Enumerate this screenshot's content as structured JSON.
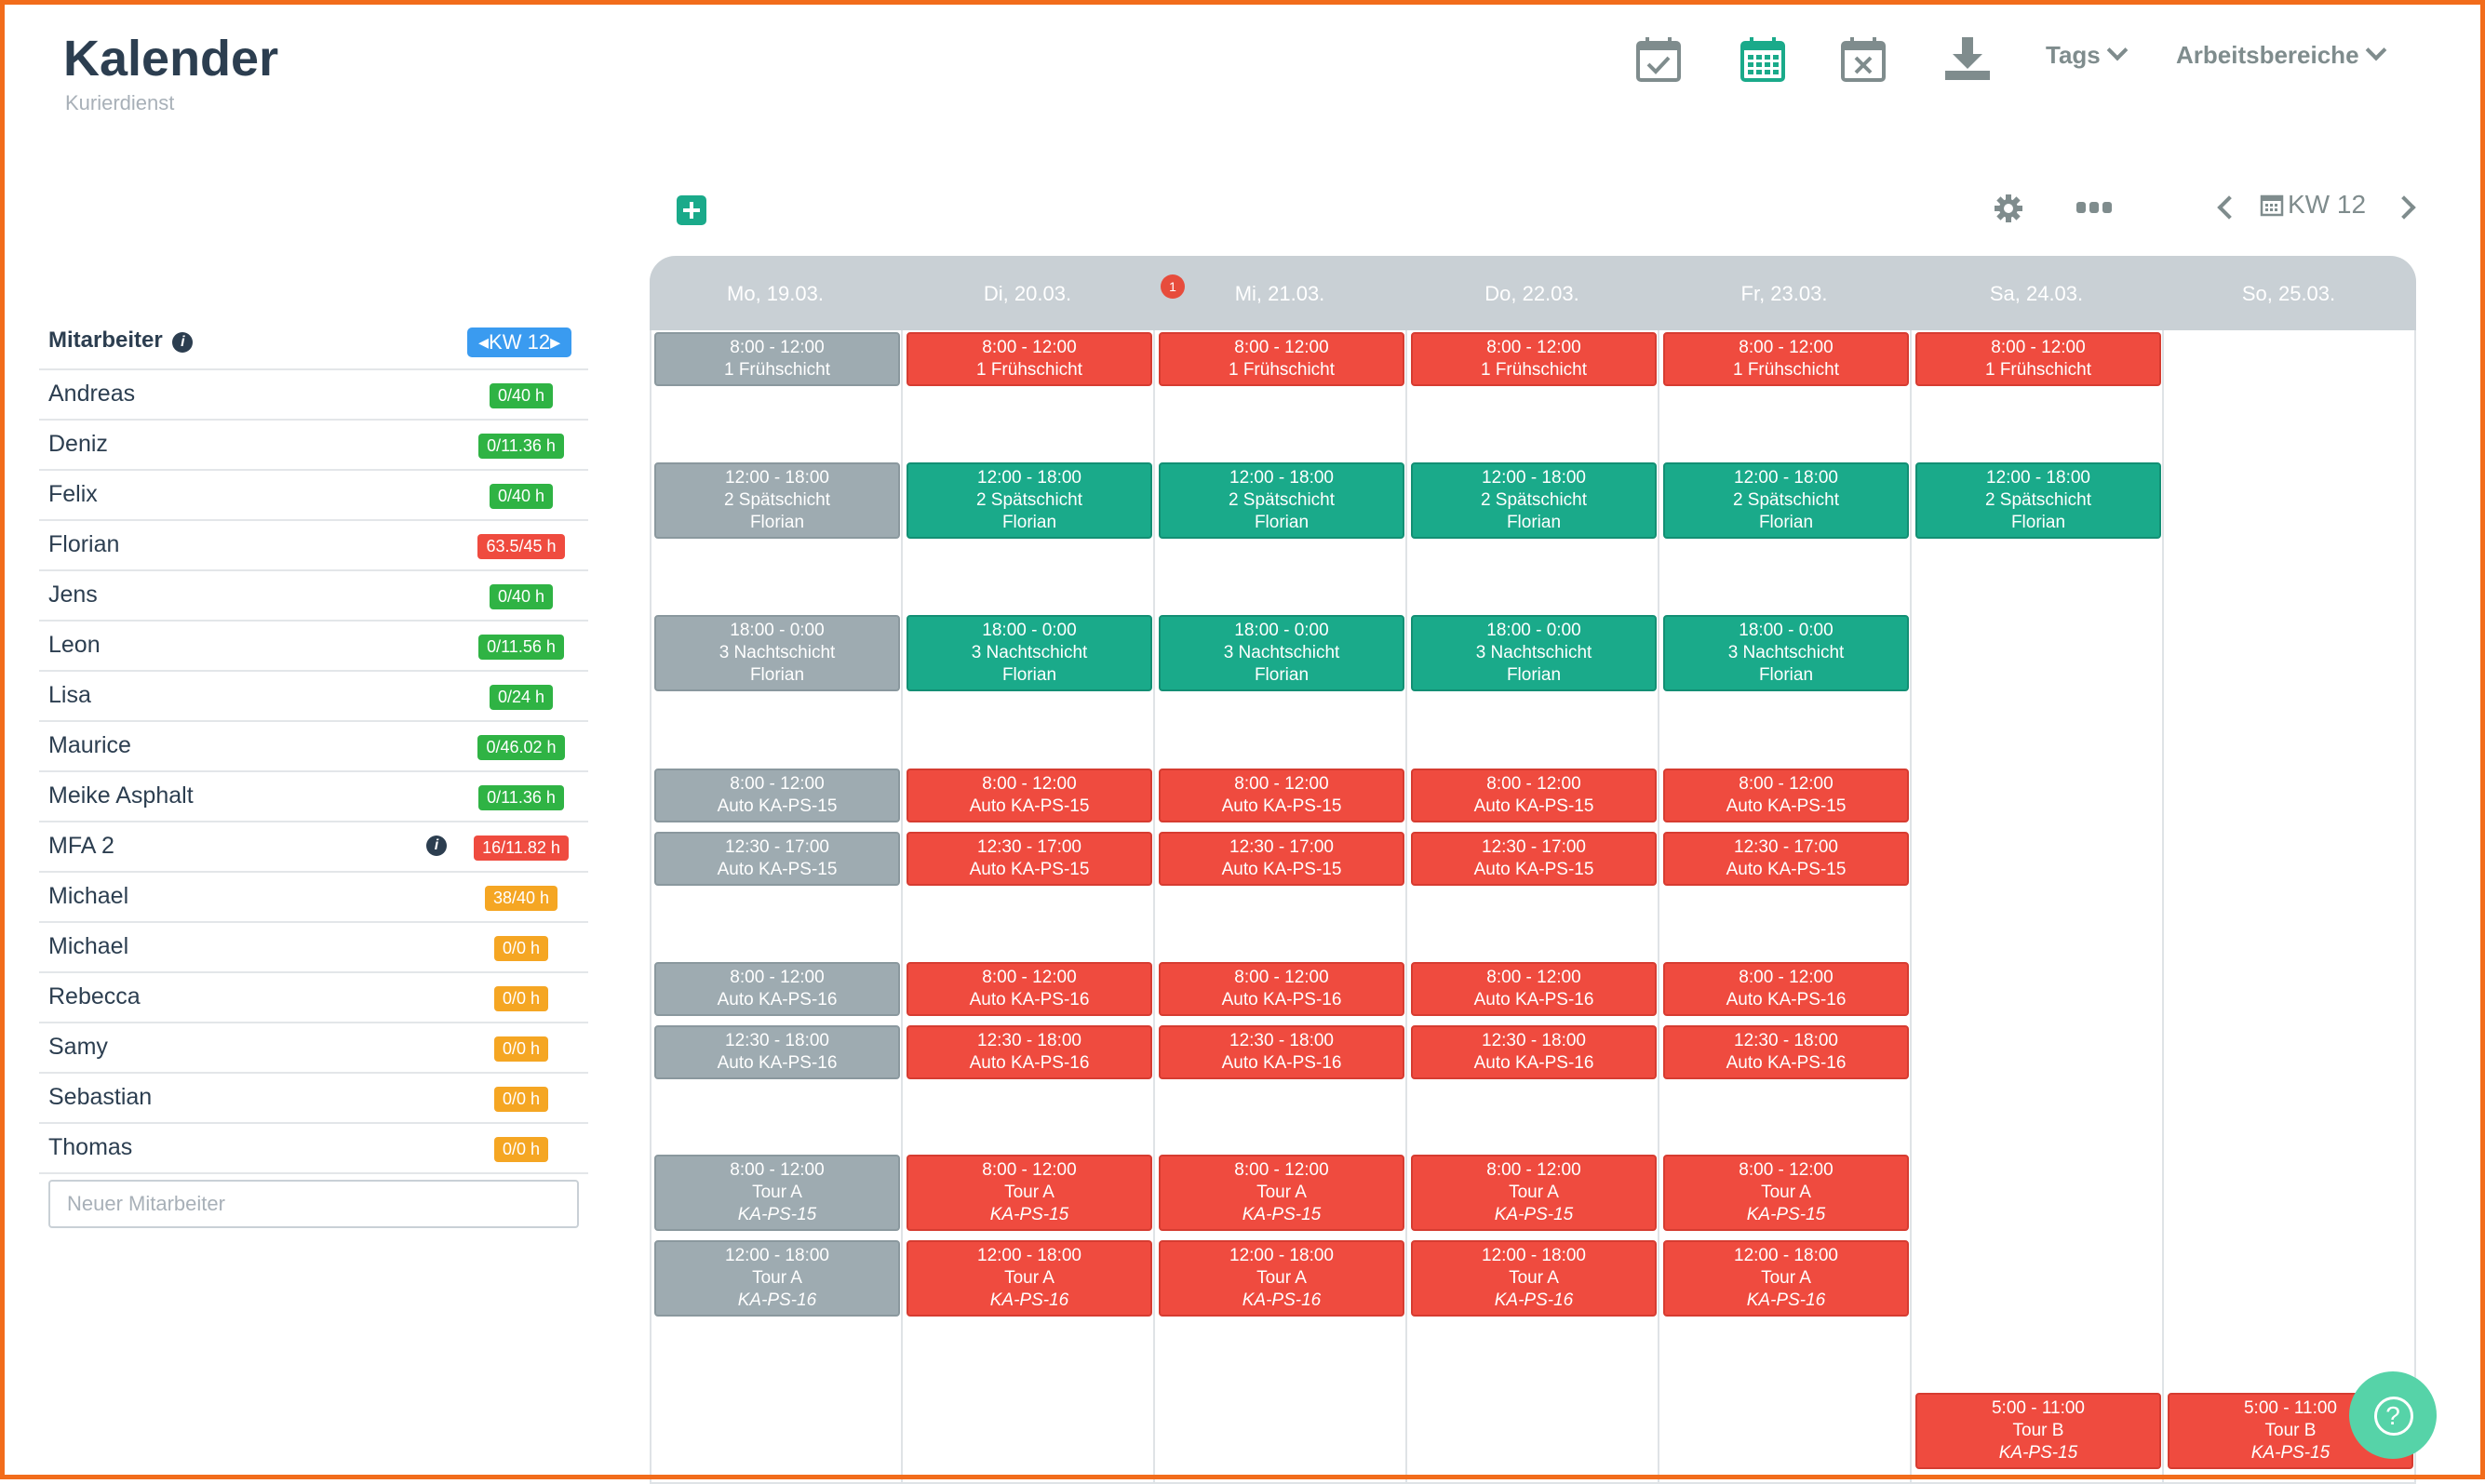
{
  "app": {
    "title": "Kalender",
    "subtitle": "Kurierdienst"
  },
  "toolbar": {
    "icons": [
      "calendar-check-icon",
      "calendar-grid-icon",
      "calendar-x-icon",
      "download-icon"
    ],
    "tags_label": "Tags",
    "workspaces_label": "Arbeitsbereiche"
  },
  "week_nav": {
    "label": "KW 12"
  },
  "employees": {
    "header": "Mitarbeiter",
    "week_badge": "KW 12",
    "new_placeholder": "Neuer Mitarbeiter",
    "items": [
      {
        "name": "Andreas",
        "hours": "0/40 h",
        "status": "green"
      },
      {
        "name": "Deniz",
        "hours": "0/11.36 h",
        "status": "green"
      },
      {
        "name": "Felix",
        "hours": "0/40 h",
        "status": "green"
      },
      {
        "name": "Florian",
        "hours": "63.5/45 h",
        "status": "red"
      },
      {
        "name": "Jens",
        "hours": "0/40 h",
        "status": "green"
      },
      {
        "name": "Leon",
        "hours": "0/11.56 h",
        "status": "green"
      },
      {
        "name": "Lisa",
        "hours": "0/24 h",
        "status": "green"
      },
      {
        "name": "Maurice",
        "hours": "0/46.02 h",
        "status": "green"
      },
      {
        "name": "Meike Asphalt",
        "hours": "0/11.36 h",
        "status": "green"
      },
      {
        "name": "MFA 2",
        "hours": "16/11.82 h",
        "status": "red",
        "info": "i"
      },
      {
        "name": "Michael",
        "hours": "38/40 h",
        "status": "orange"
      },
      {
        "name": "Michael",
        "hours": "0/0 h",
        "status": "orange"
      },
      {
        "name": "Rebecca",
        "hours": "0/0 h",
        "status": "orange"
      },
      {
        "name": "Samy",
        "hours": "0/0 h",
        "status": "orange"
      },
      {
        "name": "Sebastian",
        "hours": "0/0 h",
        "status": "orange"
      },
      {
        "name": "Thomas",
        "hours": "0/0 h",
        "status": "orange"
      }
    ]
  },
  "calendar": {
    "days": [
      {
        "label": "Mo, 19.03."
      },
      {
        "label": "Di, 20.03."
      },
      {
        "label": "Mi, 21.03.",
        "badge": "1"
      },
      {
        "label": "Do, 22.03."
      },
      {
        "label": "Fr, 23.03."
      },
      {
        "label": "Sa, 24.03."
      },
      {
        "label": "So, 25.03."
      }
    ],
    "shifts": [
      {
        "day": 0,
        "row": 0,
        "color": "gray",
        "time": "8:00 - 12:00",
        "title": "1 Frühschicht"
      },
      {
        "day": 1,
        "row": 0,
        "color": "red",
        "time": "8:00 - 12:00",
        "title": "1 Frühschicht"
      },
      {
        "day": 2,
        "row": 0,
        "color": "red",
        "time": "8:00 - 12:00",
        "title": "1 Frühschicht"
      },
      {
        "day": 3,
        "row": 0,
        "color": "red",
        "time": "8:00 - 12:00",
        "title": "1 Frühschicht"
      },
      {
        "day": 4,
        "row": 0,
        "color": "red",
        "time": "8:00 - 12:00",
        "title": "1 Frühschicht"
      },
      {
        "day": 5,
        "row": 0,
        "color": "red",
        "time": "8:00 - 12:00",
        "title": "1 Frühschicht"
      },
      {
        "day": 0,
        "row": 1,
        "color": "gray",
        "time": "12:00 - 18:00",
        "title": "2 Spätschicht",
        "sub": "Florian"
      },
      {
        "day": 1,
        "row": 1,
        "color": "green",
        "time": "12:00 - 18:00",
        "title": "2 Spätschicht",
        "sub": "Florian"
      },
      {
        "day": 2,
        "row": 1,
        "color": "green",
        "time": "12:00 - 18:00",
        "title": "2 Spätschicht",
        "sub": "Florian"
      },
      {
        "day": 3,
        "row": 1,
        "color": "green",
        "time": "12:00 - 18:00",
        "title": "2 Spätschicht",
        "sub": "Florian"
      },
      {
        "day": 4,
        "row": 1,
        "color": "green",
        "time": "12:00 - 18:00",
        "title": "2 Spätschicht",
        "sub": "Florian"
      },
      {
        "day": 5,
        "row": 1,
        "color": "green",
        "time": "12:00 - 18:00",
        "title": "2 Spätschicht",
        "sub": "Florian"
      },
      {
        "day": 0,
        "row": 2,
        "color": "gray",
        "time": "18:00 - 0:00",
        "title": "3 Nachtschicht",
        "sub": "Florian"
      },
      {
        "day": 1,
        "row": 2,
        "color": "green",
        "time": "18:00 - 0:00",
        "title": "3 Nachtschicht",
        "sub": "Florian"
      },
      {
        "day": 2,
        "row": 2,
        "color": "green",
        "time": "18:00 - 0:00",
        "title": "3 Nachtschicht",
        "sub": "Florian"
      },
      {
        "day": 3,
        "row": 2,
        "color": "green",
        "time": "18:00 - 0:00",
        "title": "3 Nachtschicht",
        "sub": "Florian"
      },
      {
        "day": 4,
        "row": 2,
        "color": "green",
        "time": "18:00 - 0:00",
        "title": "3 Nachtschicht",
        "sub": "Florian"
      },
      {
        "day": 0,
        "row": 3,
        "color": "gray",
        "time": "8:00 - 12:00",
        "title": "Auto KA-PS-15"
      },
      {
        "day": 1,
        "row": 3,
        "color": "red",
        "time": "8:00 - 12:00",
        "title": "Auto KA-PS-15"
      },
      {
        "day": 2,
        "row": 3,
        "color": "red",
        "time": "8:00 - 12:00",
        "title": "Auto KA-PS-15"
      },
      {
        "day": 3,
        "row": 3,
        "color": "red",
        "time": "8:00 - 12:00",
        "title": "Auto KA-PS-15"
      },
      {
        "day": 4,
        "row": 3,
        "color": "red",
        "time": "8:00 - 12:00",
        "title": "Auto KA-PS-15"
      },
      {
        "day": 0,
        "row": 4,
        "color": "gray",
        "time": "12:30 - 17:00",
        "title": "Auto KA-PS-15"
      },
      {
        "day": 1,
        "row": 4,
        "color": "red",
        "time": "12:30 - 17:00",
        "title": "Auto KA-PS-15"
      },
      {
        "day": 2,
        "row": 4,
        "color": "red",
        "time": "12:30 - 17:00",
        "title": "Auto KA-PS-15"
      },
      {
        "day": 3,
        "row": 4,
        "color": "red",
        "time": "12:30 - 17:00",
        "title": "Auto KA-PS-15"
      },
      {
        "day": 4,
        "row": 4,
        "color": "red",
        "time": "12:30 - 17:00",
        "title": "Auto KA-PS-15"
      },
      {
        "day": 0,
        "row": 5,
        "color": "gray",
        "time": "8:00 - 12:00",
        "title": "Auto KA-PS-16"
      },
      {
        "day": 1,
        "row": 5,
        "color": "red",
        "time": "8:00 - 12:00",
        "title": "Auto KA-PS-16"
      },
      {
        "day": 2,
        "row": 5,
        "color": "red",
        "time": "8:00 - 12:00",
        "title": "Auto KA-PS-16"
      },
      {
        "day": 3,
        "row": 5,
        "color": "red",
        "time": "8:00 - 12:00",
        "title": "Auto KA-PS-16"
      },
      {
        "day": 4,
        "row": 5,
        "color": "red",
        "time": "8:00 - 12:00",
        "title": "Auto KA-PS-16"
      },
      {
        "day": 0,
        "row": 6,
        "color": "gray",
        "time": "12:30 - 18:00",
        "title": "Auto KA-PS-16"
      },
      {
        "day": 1,
        "row": 6,
        "color": "red",
        "time": "12:30 - 18:00",
        "title": "Auto KA-PS-16"
      },
      {
        "day": 2,
        "row": 6,
        "color": "red",
        "time": "12:30 - 18:00",
        "title": "Auto KA-PS-16"
      },
      {
        "day": 3,
        "row": 6,
        "color": "red",
        "time": "12:30 - 18:00",
        "title": "Auto KA-PS-16"
      },
      {
        "day": 4,
        "row": 6,
        "color": "red",
        "time": "12:30 - 18:00",
        "title": "Auto KA-PS-16"
      },
      {
        "day": 0,
        "row": 7,
        "color": "gray",
        "time": "8:00 - 12:00",
        "title": "Tour A",
        "sub": "KA-PS-15",
        "italic": true
      },
      {
        "day": 1,
        "row": 7,
        "color": "red",
        "time": "8:00 - 12:00",
        "title": "Tour A",
        "sub": "KA-PS-15",
        "italic": true
      },
      {
        "day": 2,
        "row": 7,
        "color": "red",
        "time": "8:00 - 12:00",
        "title": "Tour A",
        "sub": "KA-PS-15",
        "italic": true
      },
      {
        "day": 3,
        "row": 7,
        "color": "red",
        "time": "8:00 - 12:00",
        "title": "Tour A",
        "sub": "KA-PS-15",
        "italic": true
      },
      {
        "day": 4,
        "row": 7,
        "color": "red",
        "time": "8:00 - 12:00",
        "title": "Tour A",
        "sub": "KA-PS-15",
        "italic": true
      },
      {
        "day": 0,
        "row": 8,
        "color": "gray",
        "time": "12:00 - 18:00",
        "title": "Tour A",
        "sub": "KA-PS-16",
        "italic": true
      },
      {
        "day": 1,
        "row": 8,
        "color": "red",
        "time": "12:00 - 18:00",
        "title": "Tour A",
        "sub": "KA-PS-16",
        "italic": true
      },
      {
        "day": 2,
        "row": 8,
        "color": "red",
        "time": "12:00 - 18:00",
        "title": "Tour A",
        "sub": "KA-PS-16",
        "italic": true
      },
      {
        "day": 3,
        "row": 8,
        "color": "red",
        "time": "12:00 - 18:00",
        "title": "Tour A",
        "sub": "KA-PS-16",
        "italic": true
      },
      {
        "day": 4,
        "row": 8,
        "color": "red",
        "time": "12:00 - 18:00",
        "title": "Tour A",
        "sub": "KA-PS-16",
        "italic": true
      },
      {
        "day": 5,
        "row": 9,
        "color": "red",
        "time": "5:00 - 11:00",
        "title": "Tour B",
        "sub": "KA-PS-15",
        "italic": true
      },
      {
        "day": 6,
        "row": 9,
        "color": "red",
        "time": "5:00 - 11:00",
        "title": "Tour B",
        "sub": "KA-PS-15",
        "italic": true
      }
    ]
  },
  "colors": {
    "accent": "#1aaa8a",
    "danger": "#ef4b3f",
    "muted": "#9eabb1",
    "primary": "#3a9bf0",
    "warning": "#f5a623",
    "success": "#2fb344"
  }
}
